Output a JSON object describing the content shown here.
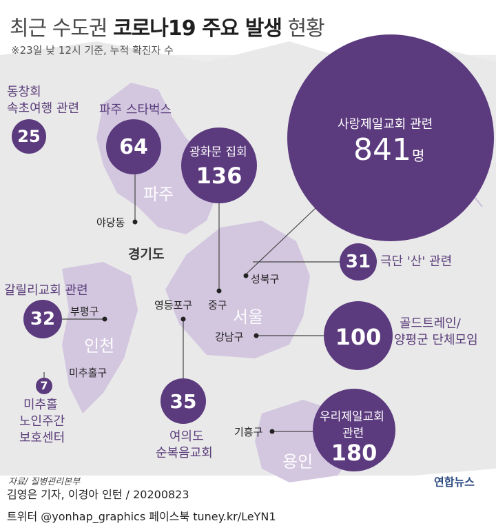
{
  "title": {
    "prefix": "최근 수도권 ",
    "bold": "코로나19 주요 발생",
    "suffix": " 현황"
  },
  "subtitle": "※23일 낮 12시 기준, 누적 확진자 수",
  "regions": {
    "paju": "파주",
    "gyeonggi": "경기도",
    "seoul": "서울",
    "incheon": "인천",
    "yongin": "용인"
  },
  "places": {
    "yadang": "야당동",
    "seongbuk": "성북구",
    "jung": "중구",
    "yeongdeungpo": "영등포구",
    "gangnam": "강남구",
    "bupyeong": "부평구",
    "michuhol": "미추홀구",
    "giheung": "기흥구"
  },
  "clusters": {
    "sokcho": {
      "label1": "동창회",
      "label2": "속초여행 관련",
      "count": "25"
    },
    "paju_starbucks": {
      "label": "파주 스타벅스",
      "count": "64"
    },
    "gwanghwamun": {
      "label": "광화문 집회",
      "count": "136"
    },
    "sarang": {
      "label": "사랑제일교회 관련",
      "count": "841",
      "unit": "명"
    },
    "geukdan": {
      "label": "극단 '산' 관련",
      "count": "31"
    },
    "galilee": {
      "label": "갈릴리교회 관련",
      "count": "32"
    },
    "goldtrain": {
      "label1": "골드트레인/",
      "label2": "양평군 단체모임",
      "count": "100"
    },
    "michuhol_center": {
      "label1": "미추홀",
      "label2": "노인주간",
      "label3": "보호센터",
      "count": "7"
    },
    "yeouido": {
      "label1": "여의도",
      "label2": "순복음교회",
      "count": "35"
    },
    "woori": {
      "label1": "우리제일교회",
      "label2": "관련",
      "count": "180"
    }
  },
  "source": "자료/ 질병관리본부",
  "logo": "연합뉴스",
  "credit": "김영은 기자, 이경아 인턴 / 20200823",
  "social": "트위터 @yonhap_graphics  페이스북 tuney.kr/LeYN1",
  "colors": {
    "bubble": "#5b3a7e",
    "map_light": "#d3c7e0",
    "map_grey": "#ececec",
    "text_purple": "#5a3d7a"
  }
}
